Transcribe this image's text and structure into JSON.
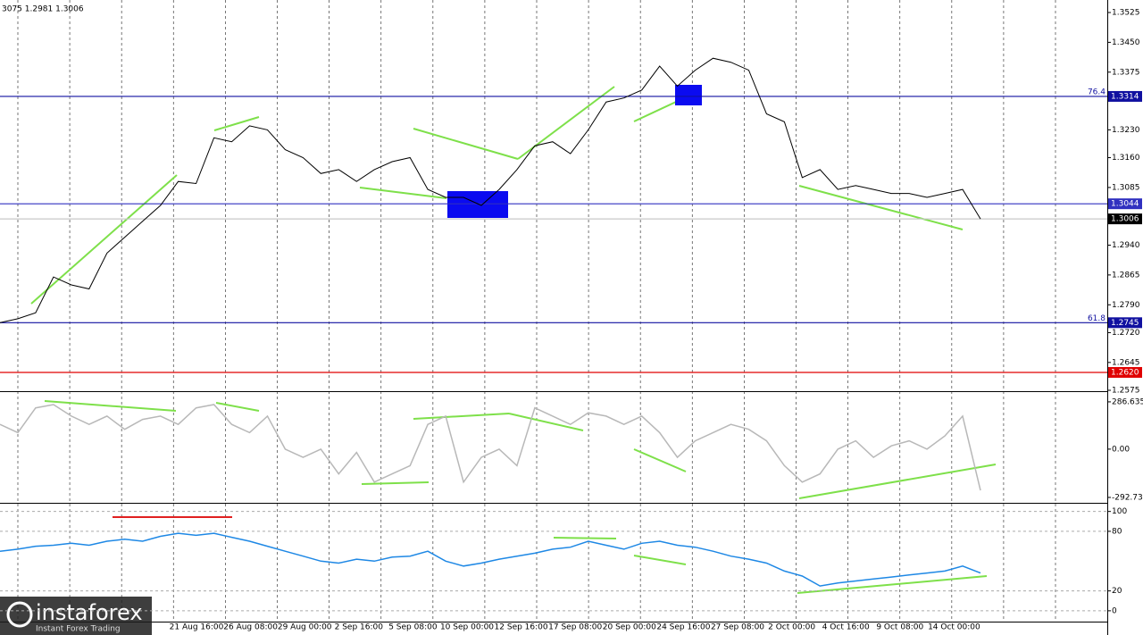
{
  "chart_data": [
    {
      "type": "line",
      "subtitle": "3075 1.2981 1.3006",
      "color": "#000000",
      "values": [
        1.2745,
        1.2755,
        1.277,
        1.286,
        1.284,
        1.283,
        1.292,
        1.296,
        1.3,
        1.304,
        1.31,
        1.3095,
        1.321,
        1.32,
        1.324,
        1.323,
        1.318,
        1.316,
        1.312,
        1.313,
        1.31,
        1.313,
        1.315,
        1.316,
        1.308,
        1.306,
        1.306,
        1.304,
        1.308,
        1.313,
        1.319,
        1.32,
        1.317,
        1.323,
        1.33,
        1.331,
        1.333,
        1.339,
        1.334,
        1.338,
        1.341,
        1.34,
        1.338,
        1.327,
        1.325,
        1.311,
        1.313,
        1.308,
        1.309,
        1.308,
        1.307,
        1.307,
        1.306,
        1.307,
        1.308,
        1.3006
      ],
      "ylim": [
        1.2575,
        1.3525
      ],
      "yticks": [
        {
          "value": 1.3525,
          "label": "1.3525"
        },
        {
          "value": 1.345,
          "label": "1.3450"
        },
        {
          "value": 1.3375,
          "label": "1.3375"
        },
        {
          "value": 1.323,
          "label": "1.3230"
        },
        {
          "value": 1.316,
          "label": "1.3160"
        },
        {
          "value": 1.3085,
          "label": "1.3085"
        },
        {
          "value": 1.294,
          "label": "1.2940"
        },
        {
          "value": 1.2865,
          "label": "1.2865"
        },
        {
          "value": 1.279,
          "label": "1.2790"
        },
        {
          "value": 1.272,
          "label": "1.2720"
        },
        {
          "value": 1.2645,
          "label": "1.2645"
        },
        {
          "value": 1.2575,
          "label": "1.2575"
        }
      ],
      "levels": [
        {
          "value": 1.3314,
          "label": "1.3314",
          "color": "#1010a0",
          "fib": "76.4"
        },
        {
          "value": 1.3044,
          "label": "1.3044",
          "color": "#3030c0"
        },
        {
          "value": 1.3006,
          "label": "1.3006",
          "color": "#000000",
          "line_color": "#c8c8c8"
        },
        {
          "value": 1.2745,
          "label": "1.2745",
          "color": "#1010a0",
          "fib": "61.8"
        },
        {
          "value": 1.262,
          "label": "1.2620",
          "color": "#e00000"
        }
      ],
      "xlabels": [
        "21 Aug 16:00",
        "26 Aug 08:00",
        "29 Aug 00:00",
        "2 Sep 16:00",
        "5 Sep 08:00",
        "10 Sep 00:00",
        "12 Sep 16:00",
        "17 Sep 08:00",
        "20 Sep 00:00",
        "24 Sep 16:00",
        "27 Sep 08:00",
        "2 Oct 00:00",
        "4 Oct 16:00",
        "9 Oct 08:00",
        "14 Oct 00:00"
      ]
    },
    {
      "type": "line",
      "color": "#b8b8b8",
      "values": [
        150,
        100,
        250,
        270,
        200,
        150,
        200,
        120,
        180,
        200,
        150,
        250,
        270,
        150,
        100,
        200,
        0,
        -50,
        0,
        -150,
        -20,
        -200,
        -150,
        -100,
        150,
        200,
        -200,
        -50,
        0,
        -100,
        250,
        200,
        150,
        220,
        200,
        150,
        200,
        100,
        -50,
        50,
        100,
        150,
        120,
        50,
        -100,
        -200,
        -150,
        0,
        50,
        -50,
        20,
        50,
        0,
        80,
        200,
        -250
      ],
      "ylim": [
        -320,
        335
      ],
      "yticks": [
        286.6354,
        {
          "value": 0,
          "label": "0.00"
        },
        -292.731
      ]
    },
    {
      "type": "line",
      "color": "#1e88e5",
      "values": [
        60,
        62,
        65,
        66,
        68,
        66,
        70,
        72,
        70,
        75,
        78,
        76,
        78,
        74,
        70,
        65,
        60,
        55,
        50,
        48,
        52,
        50,
        54,
        55,
        60,
        50,
        45,
        48,
        52,
        55,
        58,
        62,
        64,
        70,
        66,
        62,
        68,
        70,
        66,
        64,
        60,
        55,
        52,
        48,
        40,
        35,
        25,
        28,
        30,
        32,
        34,
        36,
        38,
        40,
        45,
        38
      ],
      "ylim": [
        -10,
        106
      ],
      "yticks": [
        100,
        80,
        20,
        0
      ]
    }
  ],
  "watermark": {
    "brand": "instaforex",
    "tagline": "Instant Forex Trading"
  }
}
